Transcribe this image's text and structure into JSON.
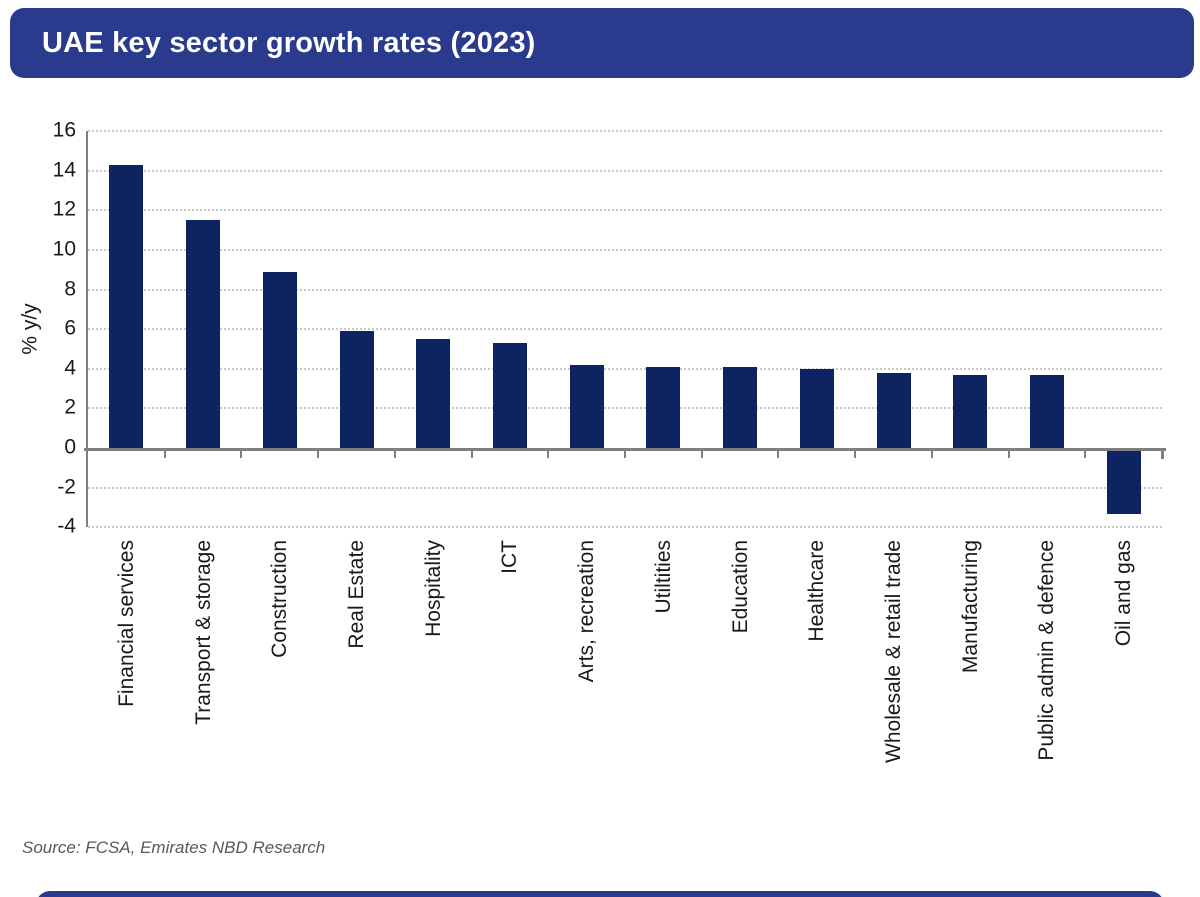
{
  "title_bar": {
    "title": "UAE key sector growth rates (2023)",
    "bg_color": "#2a3a8c",
    "text_color": "#ffffff"
  },
  "chart_data": {
    "type": "bar",
    "title": "UAE key sector growth rates (2023)",
    "categories": [
      "Financial services",
      "Transport & storage",
      "Construction",
      "Real Estate",
      "Hospitality",
      "ICT",
      "Arts, recreation",
      "Utiltities",
      "Education",
      "Healthcare",
      "Wholesale & retail trade",
      "Manufacturing",
      "Public admin & defence",
      "Oil and gas"
    ],
    "values": [
      14.3,
      11.5,
      8.9,
      5.9,
      5.5,
      5.3,
      4.2,
      4.1,
      4.1,
      4.0,
      3.8,
      3.7,
      3.7,
      -3.2
    ],
    "xlabel": "",
    "ylabel": "% y/y",
    "ylim": [
      -4,
      16
    ],
    "yticks": [
      16,
      14,
      12,
      10,
      8,
      6,
      4,
      2,
      0,
      -2,
      -4
    ],
    "grid": "horizontal-dotted",
    "legend": "none",
    "bar_color": "#0e2462",
    "axis_color": "#7f7f7f",
    "gridline_color": "#c8c8c8"
  },
  "source": {
    "text": "Source: FCSA, Emirates NBD Research"
  },
  "footer_bar": {
    "bg_color": "#2a3a8c"
  }
}
